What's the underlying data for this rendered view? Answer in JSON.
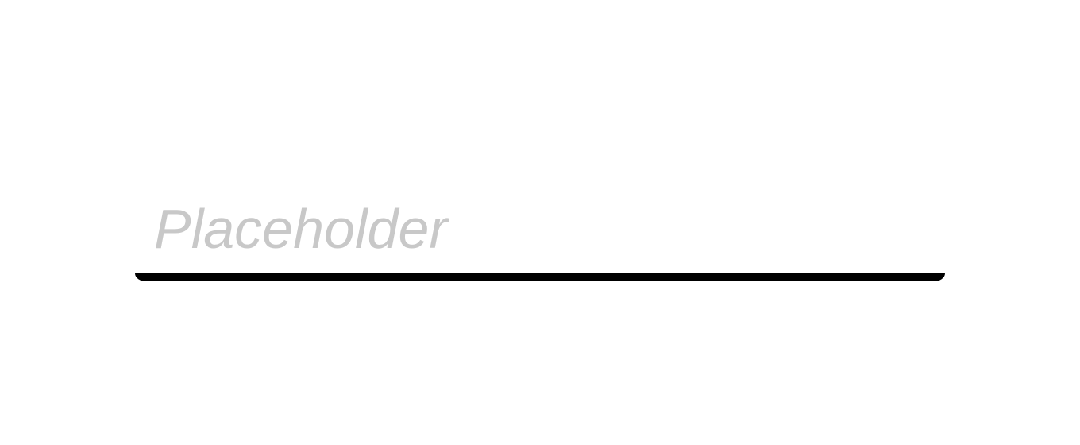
{
  "input": {
    "value": "",
    "placeholder": "Placeholder"
  },
  "colors": {
    "underline": "#000000",
    "placeholder": "#c8c8c8",
    "background": "#ffffff"
  }
}
